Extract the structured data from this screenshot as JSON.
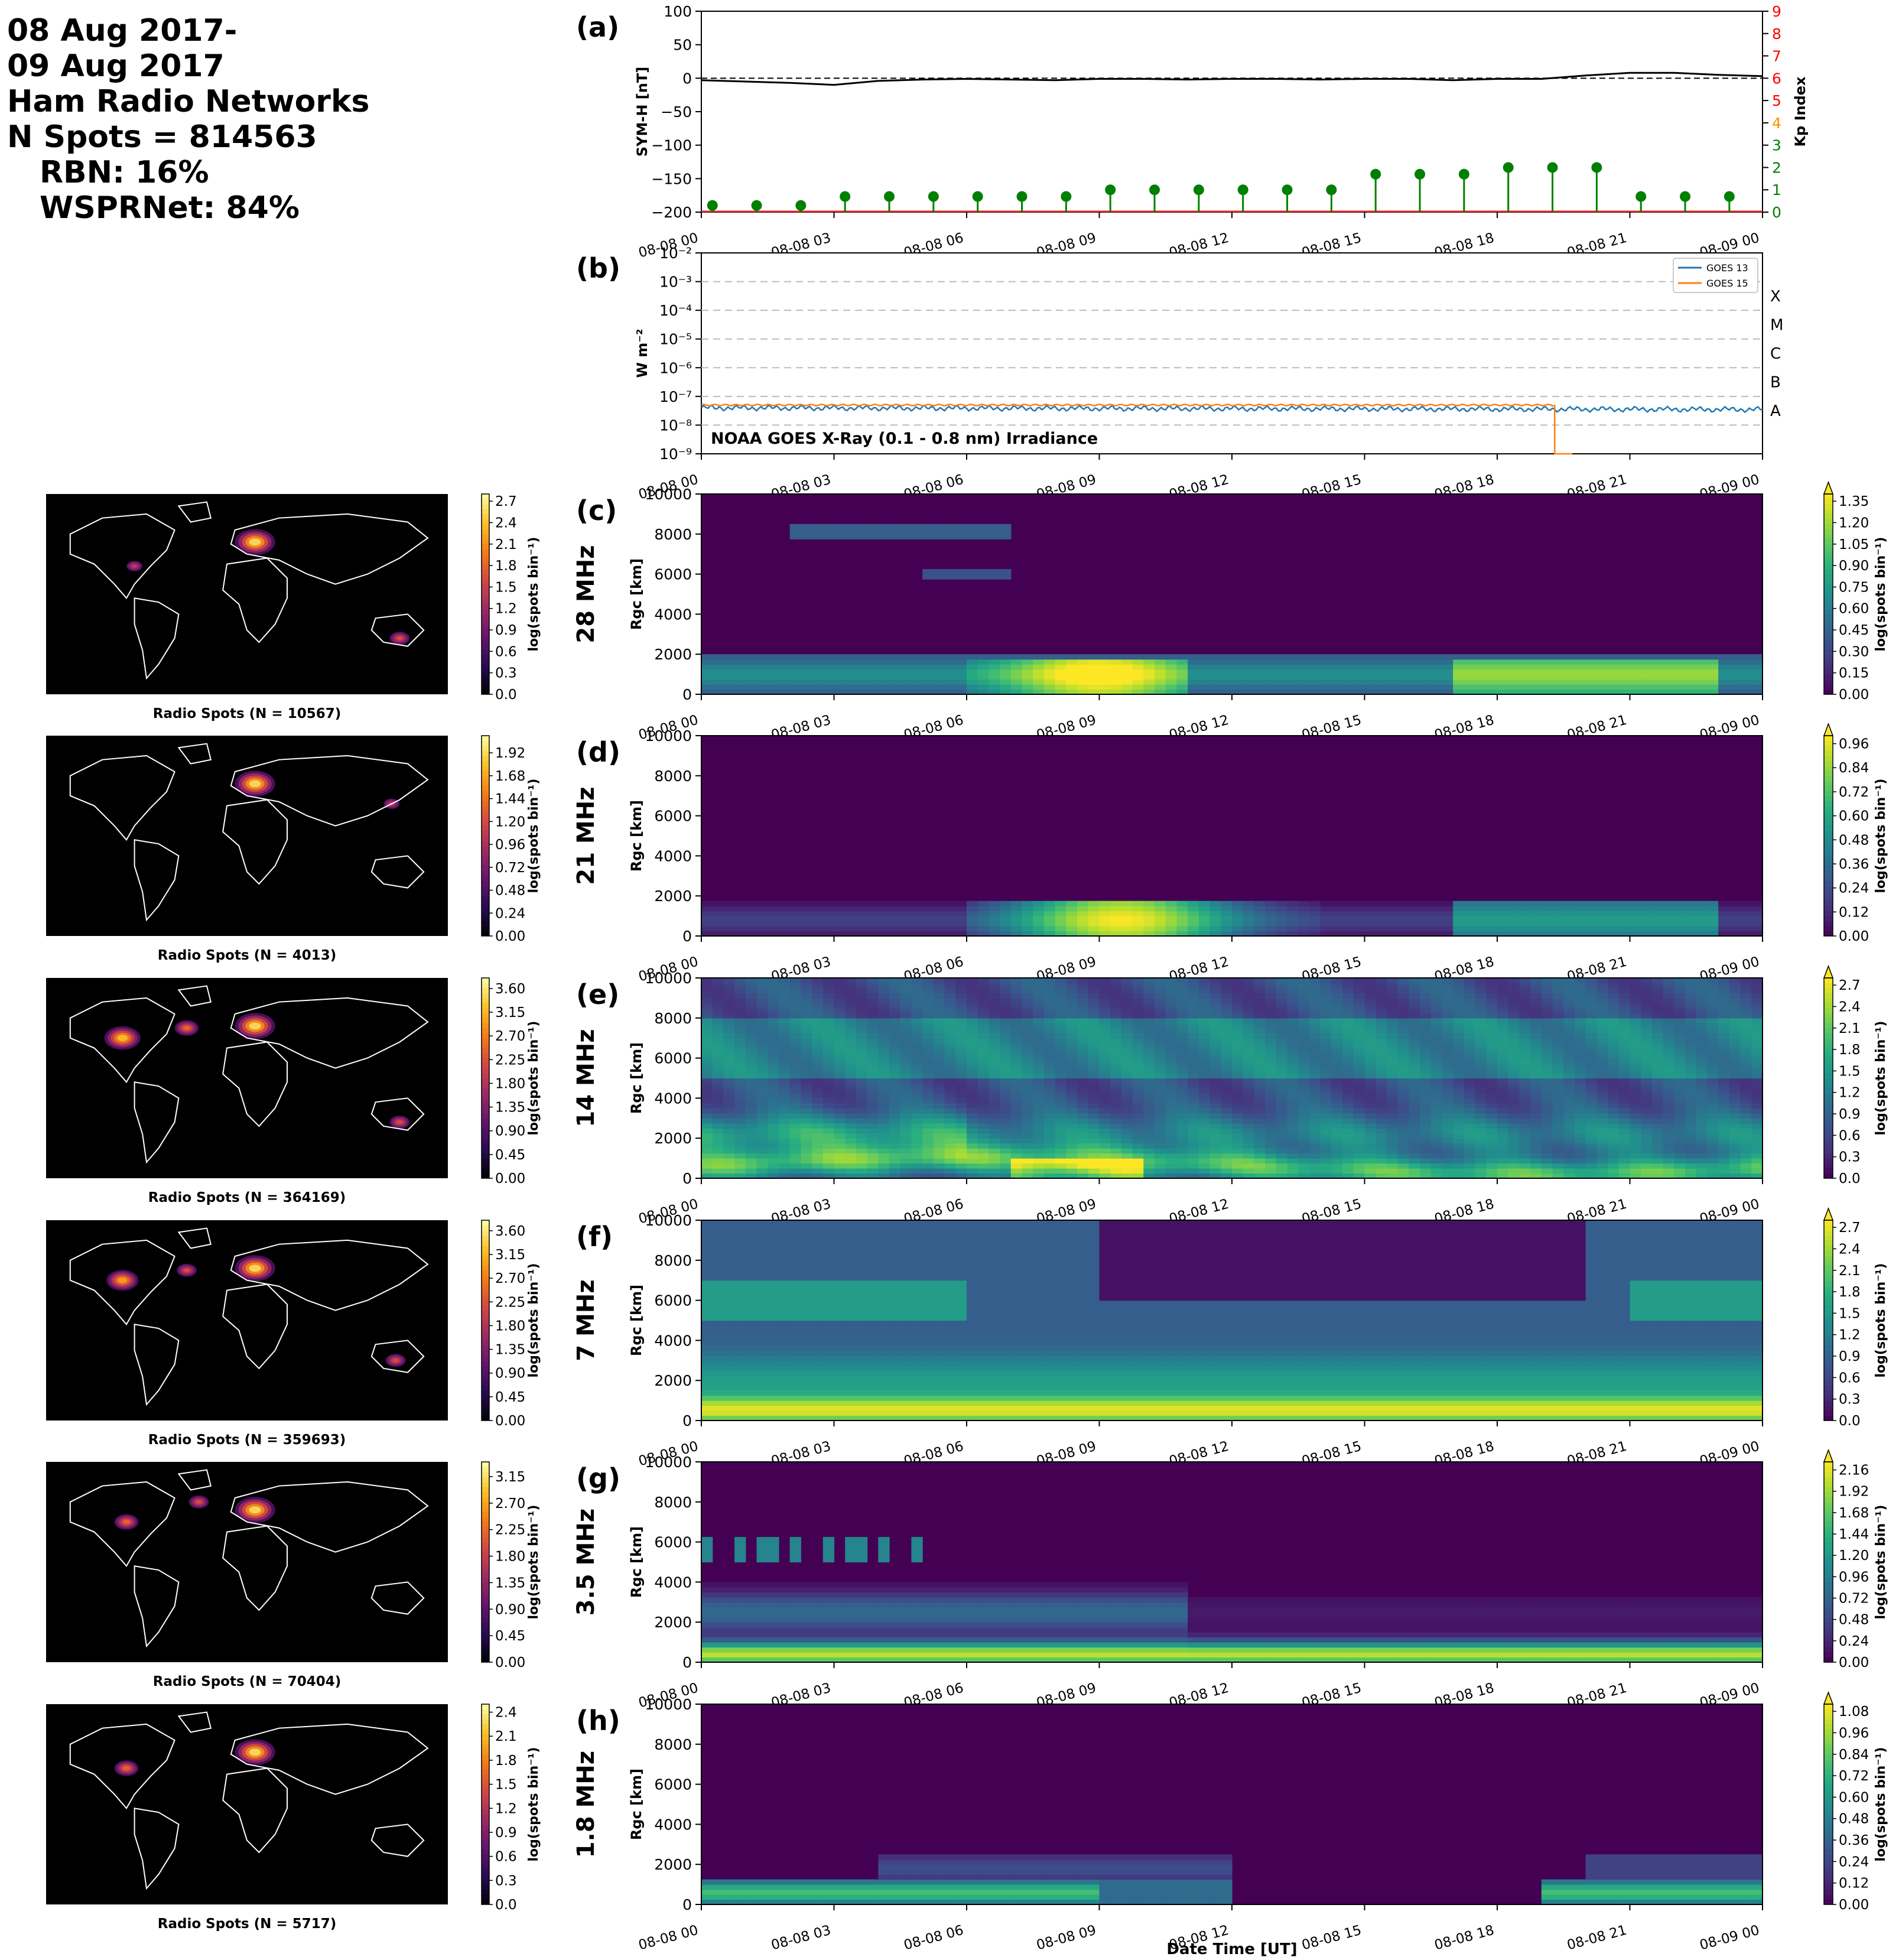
{
  "header": {
    "line1": "08 Aug 2017-",
    "line2": "09 Aug 2017",
    "line3": "Ham Radio Networks",
    "line4": "N Spots = 814563",
    "line5": "RBN: 16%",
    "line6": "WSPRNet: 84%"
  },
  "time_ticks": [
    "08-08 00",
    "08-08 03",
    "08-08 06",
    "08-08 09",
    "08-08 12",
    "08-08 15",
    "08-08 18",
    "08-08 21",
    "08-09 00"
  ],
  "xlabel": "Date Time [UT]",
  "chart_data": [
    {
      "id": "a",
      "panel_label": "(a)",
      "type": "line",
      "ylabel": "SYM-H [nT]",
      "ylim": [
        -200,
        100
      ],
      "yticks": [
        "100",
        "50",
        "0",
        "−50",
        "−100",
        "−150",
        "−200"
      ],
      "y2label": "Kp Index",
      "y2lim": [
        0,
        9
      ],
      "y2ticks": [
        "0",
        "1",
        "2",
        "3",
        "4",
        "5",
        "6",
        "7",
        "8",
        "9"
      ],
      "sym_h": {
        "x_hours": [
          0,
          1,
          2,
          3,
          4,
          5,
          6,
          7,
          8,
          9,
          10,
          11,
          12,
          13,
          14,
          15,
          16,
          17,
          18,
          19,
          20,
          21,
          22,
          23,
          24
        ],
        "values": [
          -3,
          -5,
          -7,
          -10,
          -4,
          -2,
          -1,
          -2,
          -3,
          -1,
          -1,
          -2,
          -1,
          -1,
          -2,
          -1,
          -1,
          -3,
          -1,
          -1,
          4,
          8,
          8,
          5,
          3
        ]
      },
      "kp": {
        "x_hours": [
          0,
          1,
          2,
          3,
          4,
          5,
          6,
          7,
          8,
          9,
          10,
          11,
          12,
          13,
          14,
          15,
          16,
          17,
          18,
          19,
          20,
          21,
          22,
          23
        ],
        "values": [
          0.3,
          0.3,
          0.3,
          0.7,
          0.7,
          0.7,
          0.7,
          0.7,
          0.7,
          1.0,
          1.0,
          1.0,
          1.0,
          1.0,
          1.0,
          1.7,
          1.7,
          1.7,
          2.0,
          2.0,
          2.0,
          0.7,
          0.7,
          0.7
        ]
      },
      "grid": false
    },
    {
      "id": "b",
      "panel_label": "(b)",
      "type": "line",
      "ylabel": "W m⁻²",
      "ylog": true,
      "ylim": [
        1e-09,
        0.01
      ],
      "yticks": [
        "10⁻²",
        "10⁻³",
        "10⁻⁴",
        "10⁻⁵",
        "10⁻⁶",
        "10⁻⁷",
        "10⁻⁸",
        "10⁻⁹"
      ],
      "class_labels": [
        "X",
        "M",
        "C",
        "B",
        "A"
      ],
      "annotation": "NOAA GOES X-Ray (0.1 - 0.8 nm) Irradiance",
      "series": [
        {
          "name": "GOES 13",
          "color": "#1f77b4",
          "x_hours": [
            0,
            24
          ],
          "values": [
            4e-08,
            3.5e-08
          ]
        },
        {
          "name": "GOES 15",
          "color": "#ff7f0e",
          "x_hours": [
            0,
            19.3
          ],
          "values": [
            5e-08,
            5e-08
          ]
        }
      ],
      "grid": true,
      "legend": "top-right"
    },
    {
      "id": "c",
      "panel_label": "(c)",
      "type": "heatmap",
      "freq": "28 MHz",
      "ylabel": "Rgc [km]",
      "ylim": [
        0,
        10000
      ],
      "yticks": [
        "0",
        "2000",
        "4000",
        "6000",
        "8000",
        "10000"
      ],
      "cbar_ticks": [
        "0.00",
        "0.15",
        "0.30",
        "0.45",
        "0.60",
        "0.75",
        "0.90",
        "1.05",
        "1.20",
        "1.35"
      ],
      "cbar_max": 1.4,
      "map_caption": "Radio Spots (N = 10567)",
      "map_cbar_ticks": [
        "0.0",
        "0.3",
        "0.6",
        "0.9",
        "1.2",
        "1.5",
        "1.8",
        "2.1",
        "2.4",
        "2.7"
      ],
      "map_cbar_max": 2.8,
      "cbar_label": "log(spots bin⁻¹)"
    },
    {
      "id": "d",
      "panel_label": "(d)",
      "type": "heatmap",
      "freq": "21 MHz",
      "ylabel": "Rgc [km]",
      "ylim": [
        0,
        10000
      ],
      "yticks": [
        "0",
        "2000",
        "4000",
        "6000",
        "8000",
        "10000"
      ],
      "cbar_ticks": [
        "0.00",
        "0.12",
        "0.24",
        "0.36",
        "0.48",
        "0.60",
        "0.72",
        "0.84",
        "0.96"
      ],
      "cbar_max": 1.0,
      "map_caption": "Radio Spots (N = 4013)",
      "map_cbar_ticks": [
        "0.00",
        "0.24",
        "0.48",
        "0.72",
        "0.96",
        "1.20",
        "1.44",
        "1.68",
        "1.92"
      ],
      "map_cbar_max": 2.1,
      "cbar_label": "log(spots bin⁻¹)"
    },
    {
      "id": "e",
      "panel_label": "(e)",
      "type": "heatmap",
      "freq": "14 MHz",
      "ylabel": "Rgc [km]",
      "ylim": [
        0,
        10000
      ],
      "yticks": [
        "0",
        "2000",
        "4000",
        "6000",
        "8000",
        "10000"
      ],
      "cbar_ticks": [
        "0.0",
        "0.3",
        "0.6",
        "0.9",
        "1.2",
        "1.5",
        "1.8",
        "2.1",
        "2.4",
        "2.7"
      ],
      "cbar_max": 2.8,
      "map_caption": "Radio Spots (N = 364169)",
      "map_cbar_ticks": [
        "0.00",
        "0.45",
        "0.90",
        "1.35",
        "1.80",
        "2.25",
        "2.70",
        "3.15",
        "3.60"
      ],
      "map_cbar_max": 3.8,
      "cbar_label": "log(spots bin⁻¹)"
    },
    {
      "id": "f",
      "panel_label": "(f)",
      "type": "heatmap",
      "freq": "7 MHz",
      "ylabel": "Rgc [km]",
      "ylim": [
        0,
        10000
      ],
      "yticks": [
        "0",
        "2000",
        "4000",
        "6000",
        "8000",
        "10000"
      ],
      "cbar_ticks": [
        "0.0",
        "0.3",
        "0.6",
        "0.9",
        "1.2",
        "1.5",
        "1.8",
        "2.1",
        "2.4",
        "2.7"
      ],
      "cbar_max": 2.8,
      "map_caption": "Radio Spots (N = 359693)",
      "map_cbar_ticks": [
        "0.00",
        "0.45",
        "0.90",
        "1.35",
        "1.80",
        "2.25",
        "2.70",
        "3.15",
        "3.60"
      ],
      "map_cbar_max": 3.8,
      "cbar_label": "log(spots bin⁻¹)"
    },
    {
      "id": "g",
      "panel_label": "(g)",
      "type": "heatmap",
      "freq": "3.5 MHz",
      "ylabel": "Rgc [km]",
      "ylim": [
        0,
        10000
      ],
      "yticks": [
        "0",
        "2000",
        "4000",
        "6000",
        "8000",
        "10000"
      ],
      "cbar_ticks": [
        "0.00",
        "0.24",
        "0.48",
        "0.72",
        "0.96",
        "1.20",
        "1.44",
        "1.68",
        "1.92",
        "2.16"
      ],
      "cbar_max": 2.25,
      "map_caption": "Radio Spots (N = 70404)",
      "map_cbar_ticks": [
        "0.00",
        "0.45",
        "0.90",
        "1.35",
        "1.80",
        "2.25",
        "2.70",
        "3.15"
      ],
      "map_cbar_max": 3.4,
      "cbar_label": "log(spots bin⁻¹)"
    },
    {
      "id": "h",
      "panel_label": "(h)",
      "type": "heatmap",
      "freq": "1.8 MHz",
      "ylabel": "Rgc [km]",
      "ylim": [
        0,
        10000
      ],
      "yticks": [
        "0",
        "2000",
        "4000",
        "6000",
        "8000",
        "10000"
      ],
      "cbar_ticks": [
        "0.00",
        "0.12",
        "0.24",
        "0.36",
        "0.48",
        "0.60",
        "0.72",
        "0.84",
        "0.96",
        "1.08"
      ],
      "cbar_max": 1.12,
      "map_caption": "Radio Spots (N = 5717)",
      "map_cbar_ticks": [
        "0.0",
        "0.3",
        "0.6",
        "0.9",
        "1.2",
        "1.5",
        "1.8",
        "2.1",
        "2.4"
      ],
      "map_cbar_max": 2.5,
      "cbar_label": "log(spots bin⁻¹)"
    }
  ]
}
